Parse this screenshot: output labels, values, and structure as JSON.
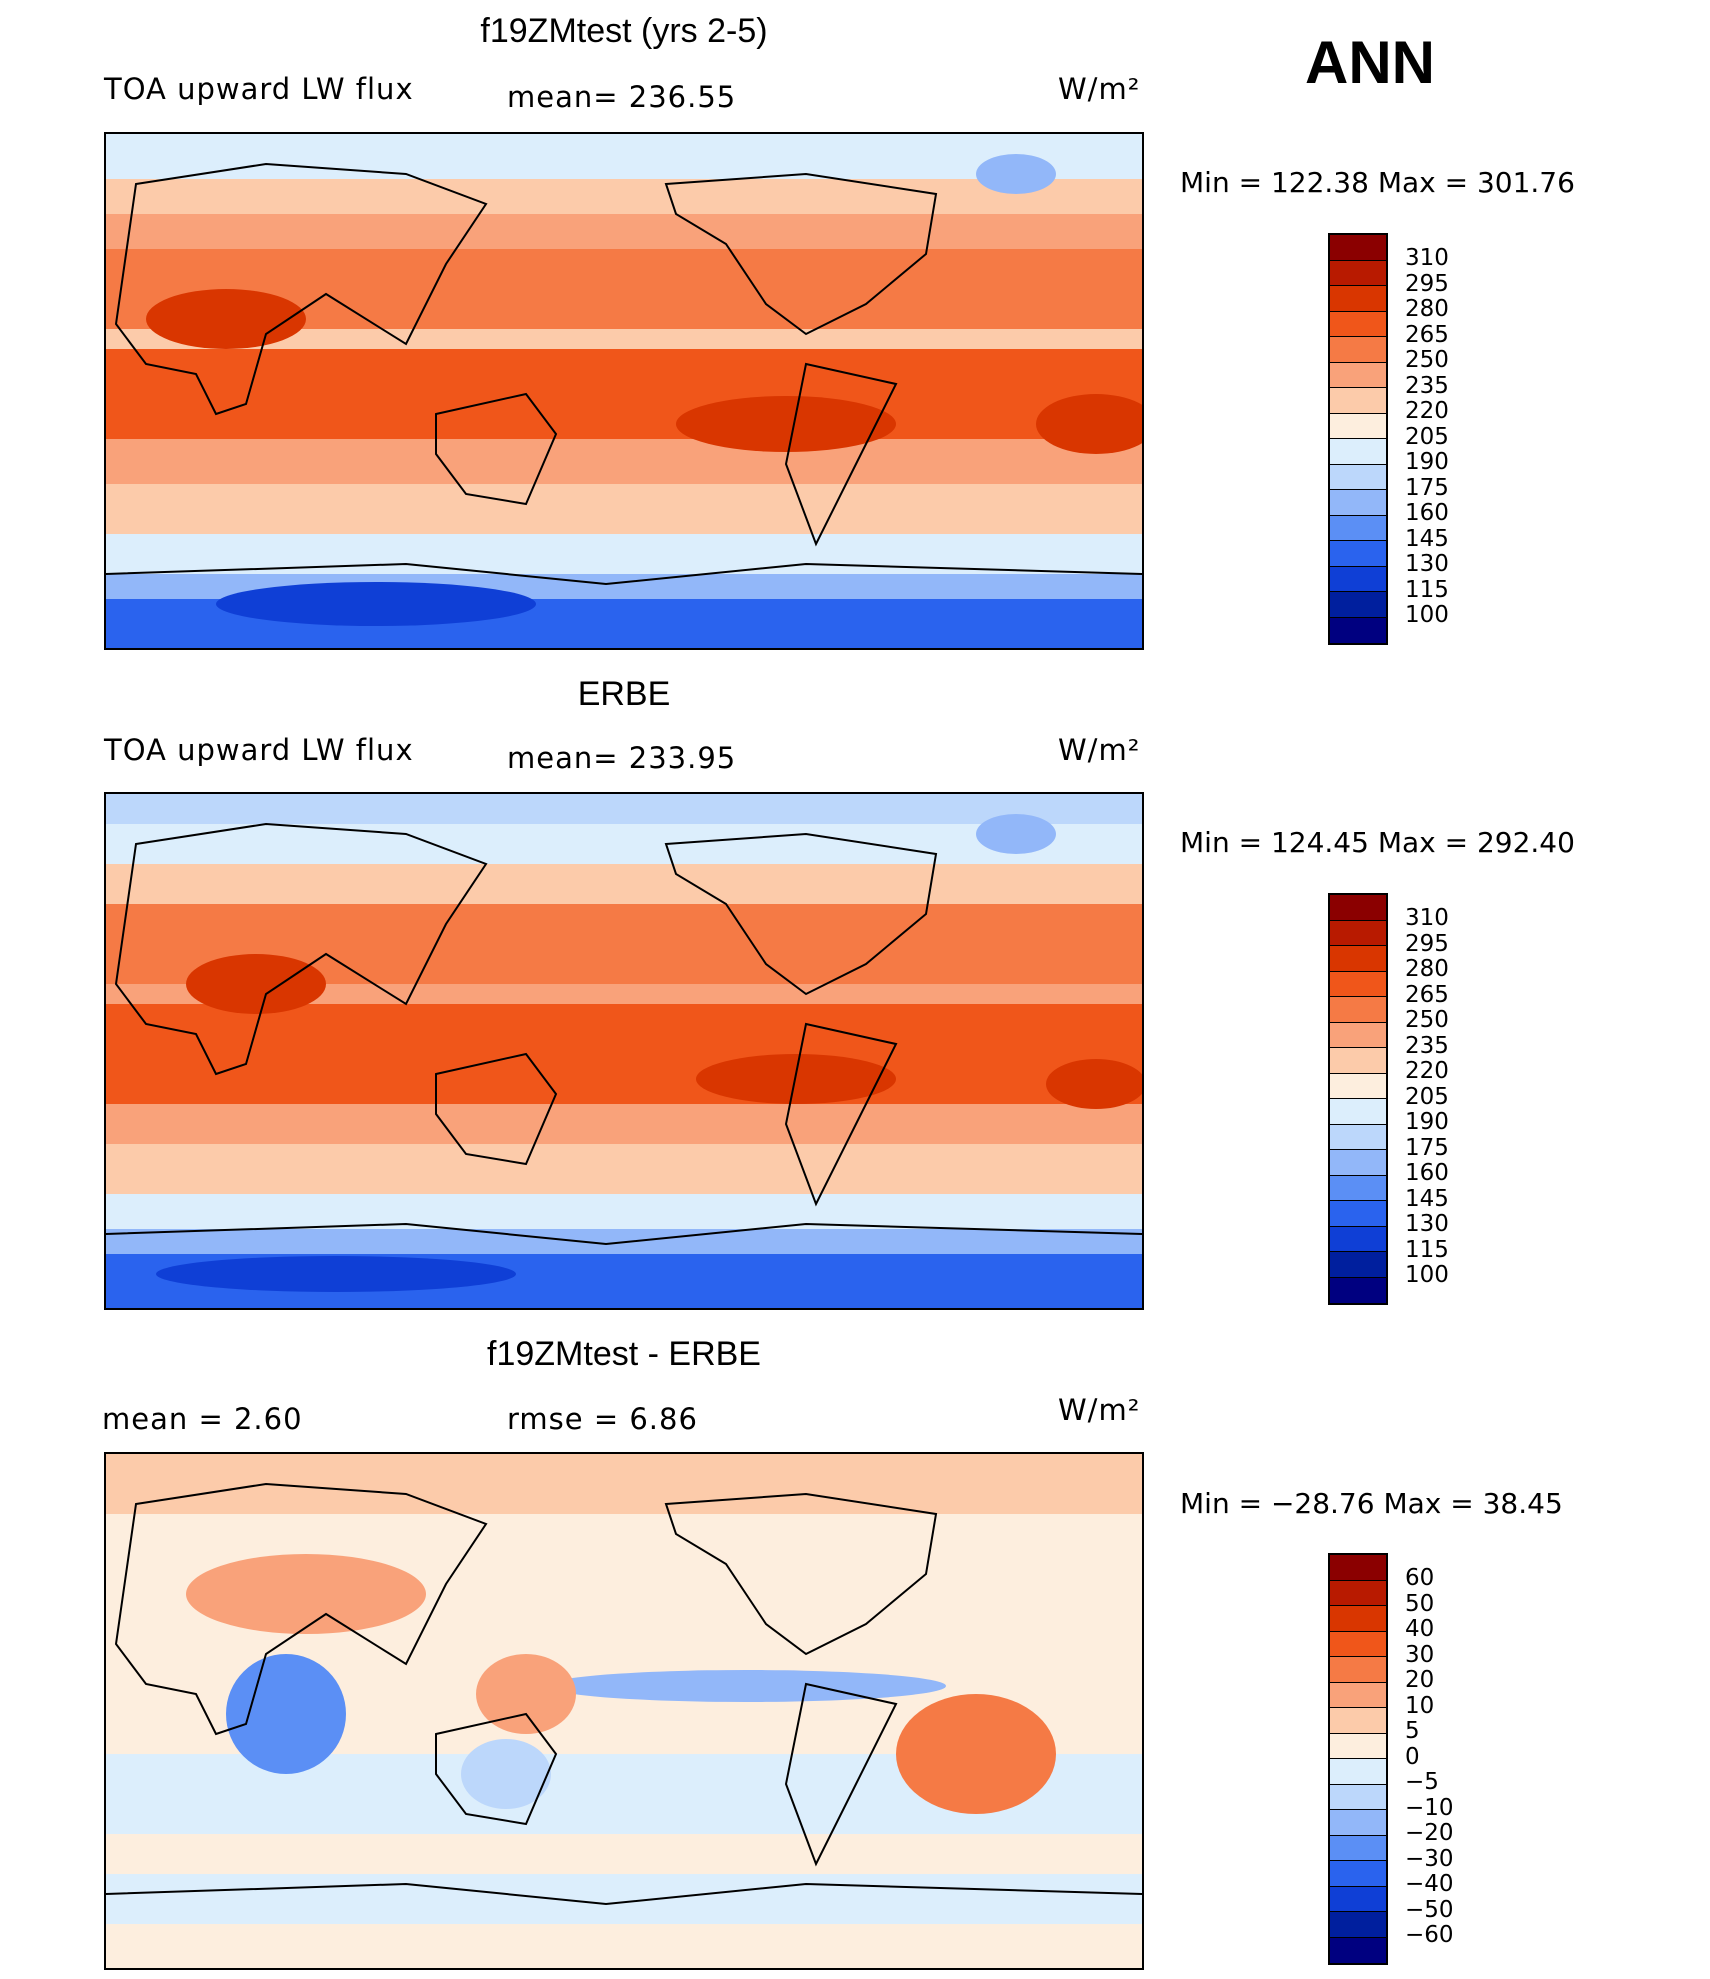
{
  "season": "ANN",
  "chart_data": [
    {
      "type": "heatmap",
      "title": "f19ZMtest (yrs 2-5)",
      "left_label": "TOA upward LW flux",
      "center_label": "mean= 236.55",
      "units": "W/m²",
      "min_max": "Min  =  122.38  Max  =  301.76",
      "mean": 236.55,
      "min": 122.38,
      "max": 301.76,
      "levels": [
        "310",
        "295",
        "280",
        "265",
        "250",
        "235",
        "220",
        "205",
        "190",
        "175",
        "160",
        "145",
        "130",
        "115",
        "100"
      ]
    },
    {
      "type": "heatmap",
      "title": "ERBE",
      "left_label": "TOA upward LW flux",
      "center_label": "mean= 233.95",
      "units": "W/m²",
      "min_max": "Min  =  124.45  Max  =  292.40",
      "mean": 233.95,
      "min": 124.45,
      "max": 292.4,
      "levels": [
        "310",
        "295",
        "280",
        "265",
        "250",
        "235",
        "220",
        "205",
        "190",
        "175",
        "160",
        "145",
        "130",
        "115",
        "100"
      ]
    },
    {
      "type": "heatmap",
      "title": "f19ZMtest - ERBE",
      "left_label": "mean  =      2.60",
      "center_label": "rmse  =      6.86",
      "units": "W/m²",
      "min_max": "Min  =  −28.76  Max  =    38.45",
      "mean": 2.6,
      "rmse": 6.86,
      "min": -28.76,
      "max": 38.45,
      "levels": [
        "60",
        "50",
        "40",
        "30",
        "20",
        "10",
        "5",
        "0",
        "−5",
        "−10",
        "−20",
        "−30",
        "−40",
        "−50",
        "−60"
      ]
    }
  ],
  "colors": {
    "abs_scale": [
      "#8b0000",
      "#b81a00",
      "#d93600",
      "#f0561a",
      "#f57a45",
      "#f9a27a",
      "#fccbaa",
      "#fdeede",
      "#dceefc",
      "#bcd7fb",
      "#92b7f9",
      "#5b8ff5",
      "#2a63ee",
      "#0f3fd6",
      "#001f9e",
      "#000080"
    ],
    "diff_scale": [
      "#8b0000",
      "#b81a00",
      "#d93600",
      "#f0561a",
      "#f57a45",
      "#f9a27a",
      "#fccbaa",
      "#fdeede",
      "#dceefc",
      "#bcd7fb",
      "#92b7f9",
      "#5b8ff5",
      "#2a63ee",
      "#0f3fd6",
      "#001f9e",
      "#000080"
    ]
  }
}
